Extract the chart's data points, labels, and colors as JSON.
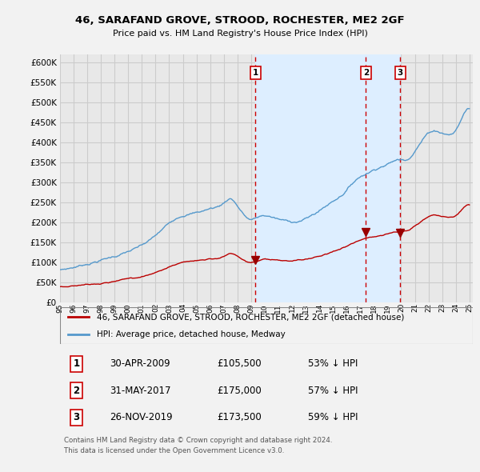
{
  "title": "46, SARAFAND GROVE, STROOD, ROCHESTER, ME2 2GF",
  "subtitle": "Price paid vs. HM Land Registry's House Price Index (HPI)",
  "background_color": "#f2f2f2",
  "plot_bg_color": "#e8e8e8",
  "plot_fill_color": "#ddeeff",
  "grid_color": "#cccccc",
  "ylim": [
    0,
    620000
  ],
  "yticks": [
    0,
    50000,
    100000,
    150000,
    200000,
    250000,
    300000,
    350000,
    400000,
    450000,
    500000,
    550000,
    600000
  ],
  "xlim_start": 1995.25,
  "xlim_end": 2025.25,
  "hpi_color": "#5599cc",
  "price_color": "#bb0000",
  "transaction_dates": [
    2009.33,
    2017.42,
    2019.92
  ],
  "transaction_prices": [
    105500,
    175000,
    173500
  ],
  "transaction_labels": [
    "1",
    "2",
    "3"
  ],
  "vline_color": "#cc0000",
  "marker_color": "#990000",
  "legend_label_price": "46, SARAFAND GROVE, STROOD, ROCHESTER, ME2 2GF (detached house)",
  "legend_label_hpi": "HPI: Average price, detached house, Medway",
  "table_rows": [
    [
      "1",
      "30-APR-2009",
      "£105,500",
      "53% ↓ HPI"
    ],
    [
      "2",
      "31-MAY-2017",
      "£175,000",
      "57% ↓ HPI"
    ],
    [
      "3",
      "26-NOV-2019",
      "£173,500",
      "59% ↓ HPI"
    ]
  ],
  "footnote": "Contains HM Land Registry data © Crown copyright and database right 2024.\nThis data is licensed under the Open Government Licence v3.0."
}
